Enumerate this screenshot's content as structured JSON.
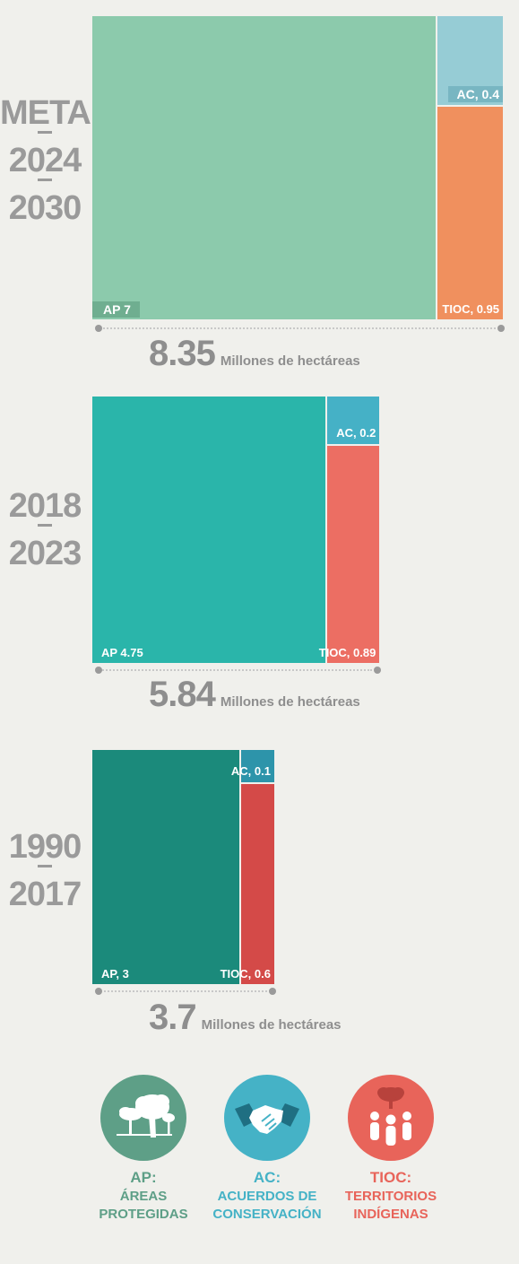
{
  "chart_data": [
    {
      "type": "treemap",
      "period_lines": [
        "META",
        "2024",
        "2030"
      ],
      "segments": [
        {
          "key": "AP",
          "label": "AP 7",
          "value": 7,
          "color": "#8ccaac"
        },
        {
          "key": "AC",
          "label": "AC, 0.4",
          "value": 0.4,
          "color": "#96ccd5"
        },
        {
          "key": "TIOC",
          "label": "TIOC, 0.95",
          "value": 0.95,
          "color": "#f0905e"
        }
      ],
      "label_tags": {
        "AP": "#6fae90",
        "AC": "#78b6c2",
        "TIOC": null
      },
      "total": "8.35",
      "unit": "Millones de hectáreas"
    },
    {
      "type": "treemap",
      "period_lines": [
        "2018",
        "2023"
      ],
      "segments": [
        {
          "key": "AP",
          "label": "AP 4.75",
          "value": 4.75,
          "color": "#2ab5aa"
        },
        {
          "key": "AC",
          "label": "AC, 0.2",
          "value": 0.2,
          "color": "#45b1c6"
        },
        {
          "key": "TIOC",
          "label": "TIOC, 0.89",
          "value": 0.89,
          "color": "#ec6e63"
        }
      ],
      "label_tags": {
        "AP": null,
        "AC": null,
        "TIOC": null
      },
      "total": "5.84",
      "unit": "Millones de hectáreas"
    },
    {
      "type": "treemap",
      "period_lines": [
        "1990",
        "2017"
      ],
      "segments": [
        {
          "key": "AP",
          "label": "AP, 3",
          "value": 3,
          "color": "#1b8a7b"
        },
        {
          "key": "AC",
          "label": "AC, 0.1",
          "value": 0.1,
          "color": "#2d94aa"
        },
        {
          "key": "TIOC",
          "label": "TIOC, 0.6",
          "value": 0.6,
          "color": "#d44a48"
        }
      ],
      "label_tags": {
        "AP": null,
        "AC": null,
        "TIOC": null
      },
      "total": "3.7",
      "unit": "Millones de hectáreas"
    }
  ],
  "legend": [
    {
      "key": "AP:",
      "lines": [
        "ÁREAS",
        "PROTEGIDAS"
      ],
      "color": "#5e9f87",
      "icon": "trees-icon"
    },
    {
      "key": "AC:",
      "lines": [
        "ACUERDOS DE",
        "CONSERVACIÓN"
      ],
      "color": "#45b2c6",
      "icon": "handshake-icon"
    },
    {
      "key": "TIOC:",
      "lines": [
        "TERRITORIOS",
        "INDÍGENAS"
      ],
      "color": "#e8645a",
      "icon": "people-tree-icon"
    }
  ]
}
